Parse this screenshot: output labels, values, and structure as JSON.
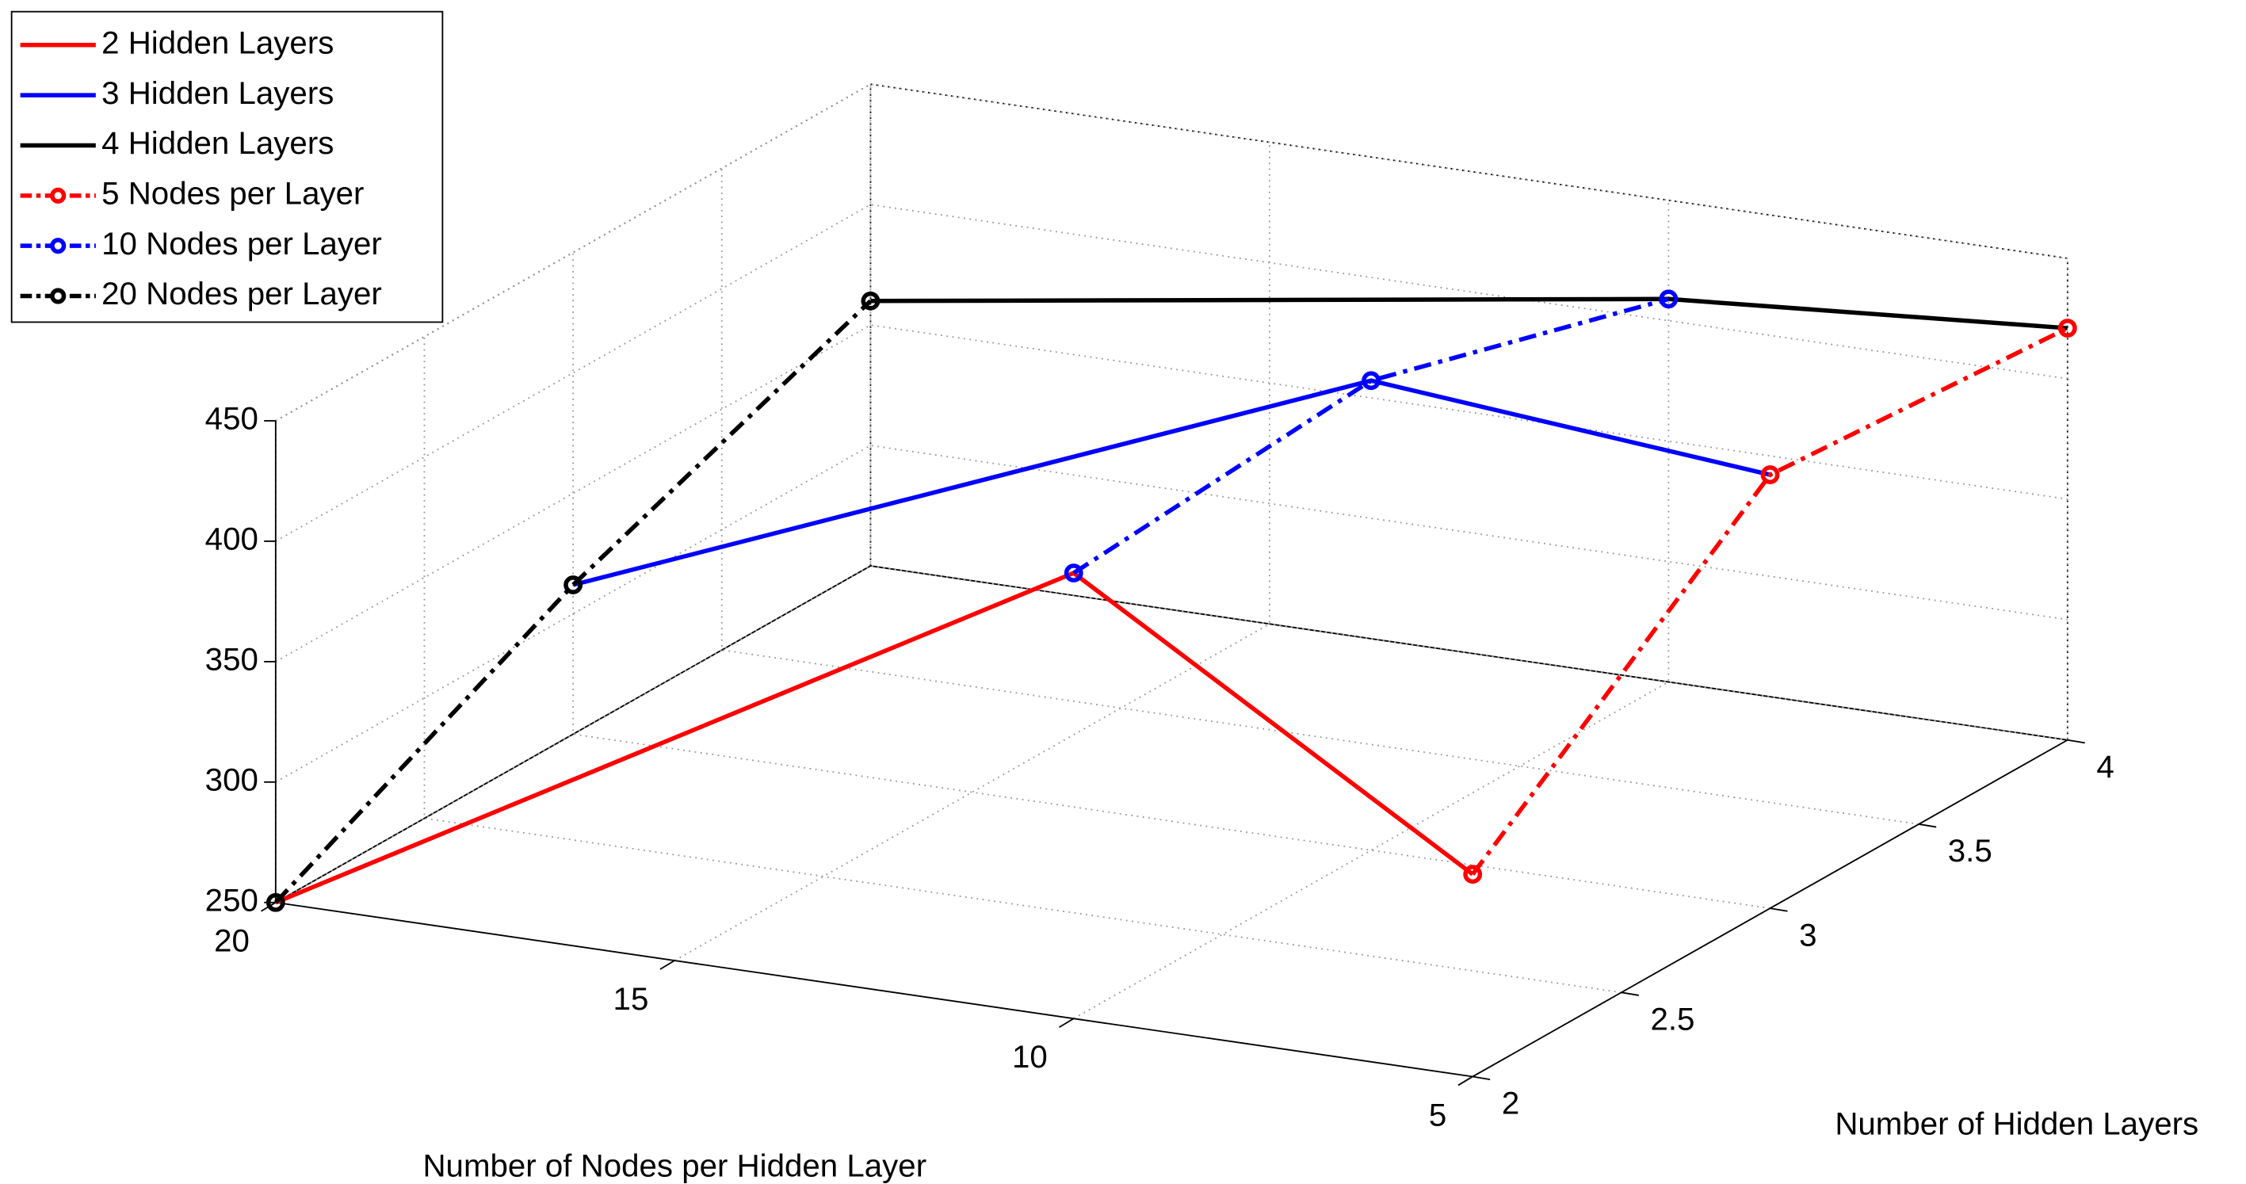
{
  "chart_data": {
    "type": "line3d",
    "xlabel": "Number of Nodes per Hidden Layer",
    "ylabel": "Number of Hidden Layers",
    "xlim": [
      5,
      20
    ],
    "xticks": [
      5,
      10,
      15,
      20
    ],
    "ylim": [
      2,
      4
    ],
    "yticks": [
      2,
      2.5,
      3,
      3.5,
      4
    ],
    "zlim": [
      250,
      450
    ],
    "zticks": [
      250,
      300,
      350,
      400,
      450
    ],
    "grid": true,
    "legend": "upper-left",
    "series": [
      {
        "name": "2 Hidden Layers",
        "color": "#ff0000",
        "style": "solid",
        "marker": false,
        "x": [
          20,
          10,
          5
        ],
        "y": [
          2,
          2,
          2
        ],
        "values": [
          250,
          435,
          334
        ]
      },
      {
        "name": "3 Hidden Layers",
        "color": "#0000ff",
        "style": "solid",
        "marker": false,
        "x": [
          20,
          10,
          5
        ],
        "y": [
          3,
          3,
          3
        ],
        "values": [
          312,
          445,
          430
        ]
      },
      {
        "name": "4 Hidden Layers",
        "color": "#000000",
        "style": "solid",
        "marker": false,
        "x": [
          20,
          10,
          5
        ],
        "y": [
          4,
          4,
          4
        ],
        "values": [
          360,
          409,
          421
        ]
      },
      {
        "name": "5 Nodes per Layer",
        "color": "#ff0000",
        "style": "dashdot",
        "marker": true,
        "x": [
          5,
          5,
          5
        ],
        "y": [
          2,
          3,
          4
        ],
        "values": [
          334,
          430,
          421
        ]
      },
      {
        "name": "10 Nodes per Layer",
        "color": "#0000ff",
        "style": "dashdot",
        "marker": true,
        "x": [
          10,
          10,
          10
        ],
        "y": [
          2,
          3,
          4
        ],
        "values": [
          435,
          445,
          409
        ]
      },
      {
        "name": "20 Nodes per Layer",
        "color": "#000000",
        "style": "dashdot",
        "marker": true,
        "x": [
          20,
          20,
          20
        ],
        "y": [
          2,
          3,
          4
        ],
        "values": [
          250,
          312,
          360
        ]
      }
    ]
  }
}
